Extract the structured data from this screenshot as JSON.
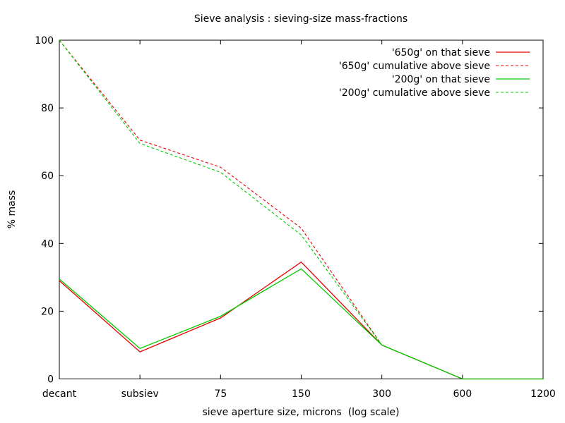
{
  "title": "Sieve analysis : sieving-size mass-fractions",
  "axes": {
    "x_label": "sieve aperture size, microns  (log scale)",
    "y_label": "% mass",
    "x_tick_labels": [
      "decant",
      "subsiev",
      "75",
      "150",
      "300",
      "600",
      "1200"
    ],
    "y_tick_labels": [
      "0",
      "20",
      "40",
      "60",
      "80",
      "100"
    ]
  },
  "colors": {
    "series_650g": "#e60000",
    "series_200g": "#00cc00"
  },
  "chart_data": {
    "type": "line",
    "title": "Sieve analysis : sieving-size mass-fractions",
    "xlabel": "sieve aperture size, microns  (log scale)",
    "ylabel": "% mass",
    "categories": [
      "decant",
      "subsiev",
      "75",
      "150",
      "300",
      "600",
      "1200"
    ],
    "y_ticks": [
      0,
      20,
      40,
      60,
      80,
      100
    ],
    "ylim": [
      0,
      100
    ],
    "grid": false,
    "legend_position": "top-right-inside",
    "series": [
      {
        "name": "'650g' on that sieve",
        "color": "#e60000",
        "style": "solid",
        "values": [
          29,
          8,
          18,
          34.5,
          10,
          0,
          0
        ]
      },
      {
        "name": "'650g' cumulative above sieve",
        "color": "#e60000",
        "style": "dashed",
        "values": [
          100,
          70.5,
          62.5,
          44.5,
          10,
          0,
          0
        ]
      },
      {
        "name": "'200g' on that sieve",
        "color": "#00cc00",
        "style": "solid",
        "values": [
          29.5,
          9,
          18.5,
          32.5,
          10,
          0,
          0
        ]
      },
      {
        "name": "'200g' cumulative above sieve",
        "color": "#00cc00",
        "style": "dashed",
        "values": [
          100,
          69.5,
          61,
          42.5,
          10,
          0,
          0
        ]
      }
    ]
  }
}
